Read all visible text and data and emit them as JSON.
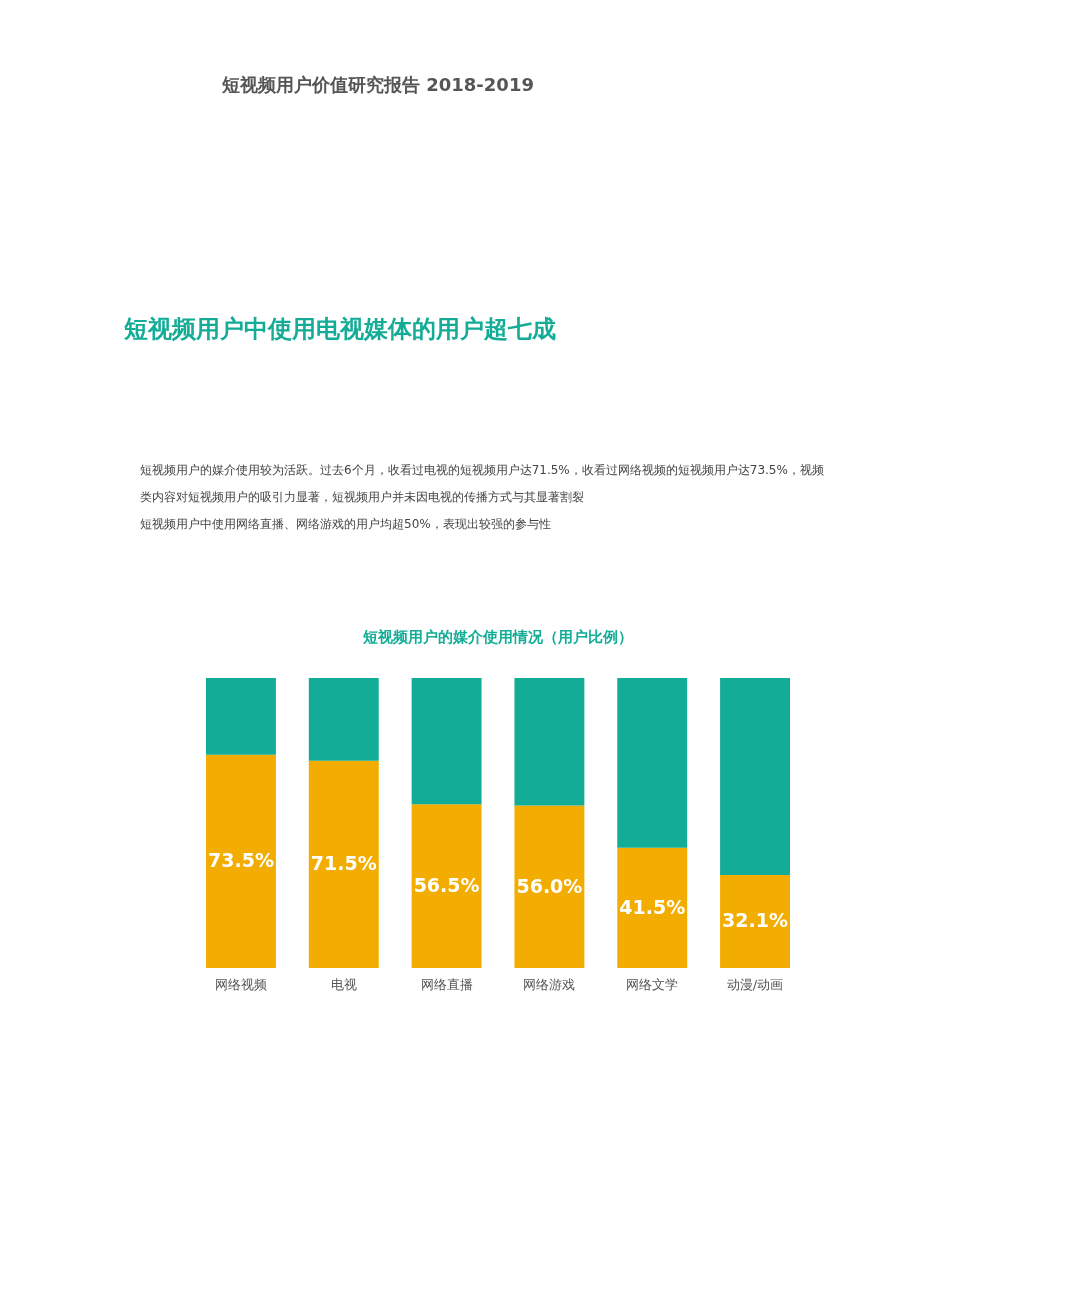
{
  "chart_data": {
    "type": "bar",
    "title": "短视频用户的媒介使用情况（用户比例）",
    "annotations": [
      "短视频用户价值研究报告 2018-2019",
      "短视频用户中使用电视媒体的用户超七成",
      "短视频用户的媒介使用较为活跃。过去6个月，收看过电视的短视频用户达71.5%，收看过网络视频的短视频用户达73.5%，视频类内容对短视频用户的吸引力显著，短视频用户并未因电视的传播方式与其显著割裂",
      "短视频用户中使用网络直播、网络游戏的用户均超50%，表现出较强的参与性"
    ],
    "categories": [
      "网络视频",
      "电视",
      "网络直播",
      "网络游戏",
      "网络文学",
      "动漫/动画"
    ],
    "stacked": true,
    "ylim": [
      0,
      100
    ],
    "tick_labels": "x",
    "series": [
      {
        "color": "#f2ad00",
        "values": [
          73.5,
          71.5,
          56.5,
          56.0,
          41.5,
          32.1
        ],
        "value_labels": [
          "73.5%",
          "71.5%",
          "56.5%",
          "56.0%",
          "41.5%",
          "32.1%"
        ]
      },
      {
        "color": "#13ac96",
        "values": [
          26.5,
          28.5,
          43.5,
          44.0,
          58.5,
          67.9
        ]
      }
    ]
  }
}
